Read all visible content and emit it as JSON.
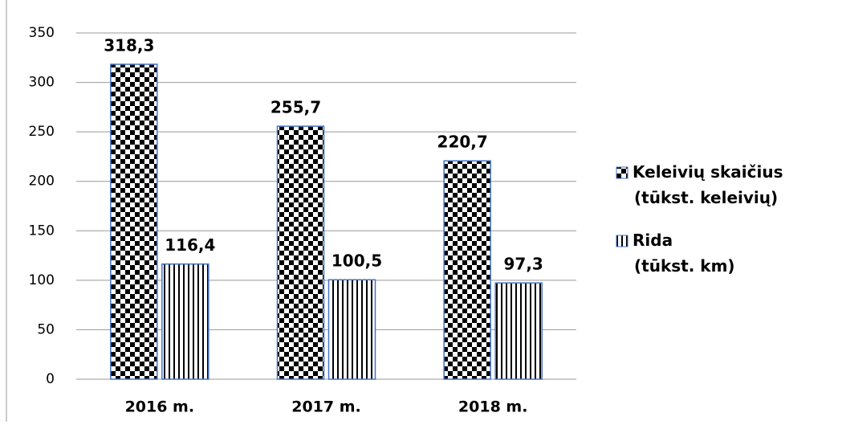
{
  "chart_data": {
    "type": "bar",
    "categories": [
      "2016 m.",
      "2017 m.",
      "2018 m."
    ],
    "series": [
      {
        "name": "Keleivių skaičius (tūkst. keleivių)",
        "color": "#000000",
        "pattern": "checker",
        "values": [
          318.3,
          255.7,
          220.7
        ],
        "value_labels": [
          "318,3",
          "255,7",
          "220,7"
        ]
      },
      {
        "name": "Rida (tūkst. km)",
        "color": "#000000",
        "pattern": "vertical",
        "values": [
          116.4,
          100.5,
          97.3
        ],
        "value_labels": [
          "116,4",
          "100,5",
          "97,3"
        ]
      }
    ],
    "ylim": [
      0,
      350
    ],
    "yticks": [
      0,
      50,
      100,
      150,
      200,
      250,
      300,
      350
    ],
    "grid": true,
    "legend": "right"
  }
}
